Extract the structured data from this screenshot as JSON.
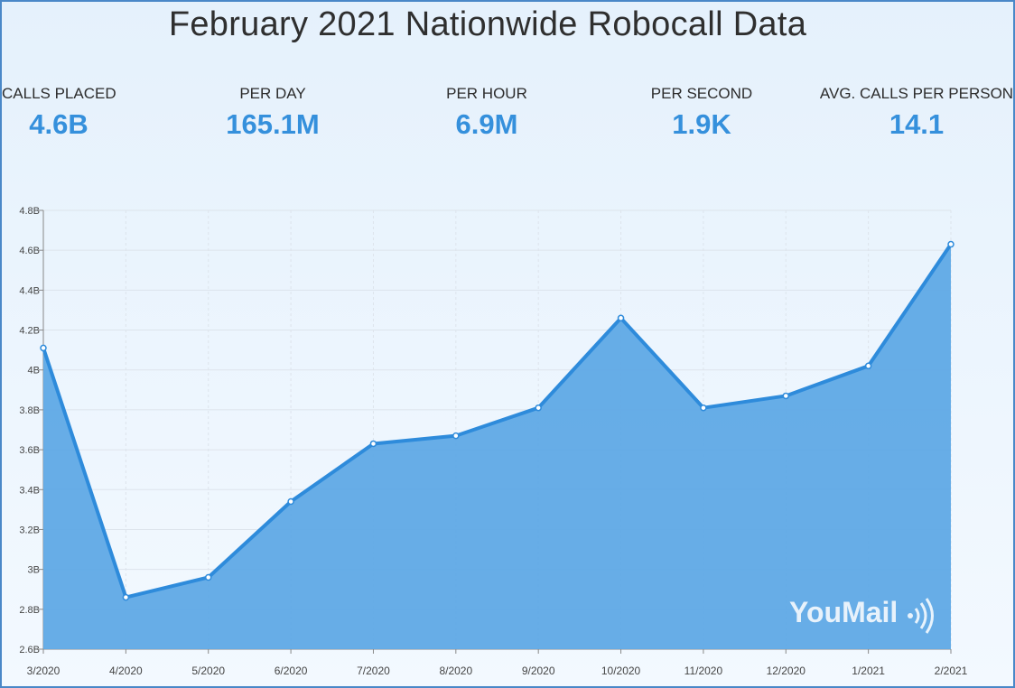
{
  "title": "February 2021 Nationwide Robocall Data",
  "stats": [
    {
      "label": "CALLS PLACED",
      "value": "4.6B"
    },
    {
      "label": "PER DAY",
      "value": "165.1M"
    },
    {
      "label": "PER HOUR",
      "value": "6.9M"
    },
    {
      "label": "PER SECOND",
      "value": "1.9K"
    },
    {
      "label": "AVG. CALLS PER PERSON",
      "value": "14.1"
    }
  ],
  "brand": {
    "name": "YouMail",
    "icon": "sound-waves-icon"
  },
  "colors": {
    "accent": "#3590dc",
    "fill": "#5fa9e6",
    "line": "#2e8bdb",
    "grid": "#dde4ec"
  },
  "chart_data": {
    "type": "area",
    "x": [
      "3/2020",
      "4/2020",
      "5/2020",
      "6/2020",
      "7/2020",
      "8/2020",
      "9/2020",
      "10/2020",
      "11/2020",
      "12/2020",
      "1/2021",
      "2/2021"
    ],
    "values": [
      4.11,
      2.86,
      2.96,
      3.34,
      3.63,
      3.67,
      3.81,
      4.26,
      3.81,
      3.87,
      4.02,
      4.63
    ],
    "yunit": "B",
    "ylim": [
      2.6,
      4.8
    ],
    "yticks": [
      "2.6B",
      "2.8B",
      "3B",
      "3.2B",
      "3.4B",
      "3.6B",
      "3.8B",
      "4B",
      "4.2B",
      "4.4B",
      "4.6B",
      "4.8B"
    ],
    "grid": true
  }
}
